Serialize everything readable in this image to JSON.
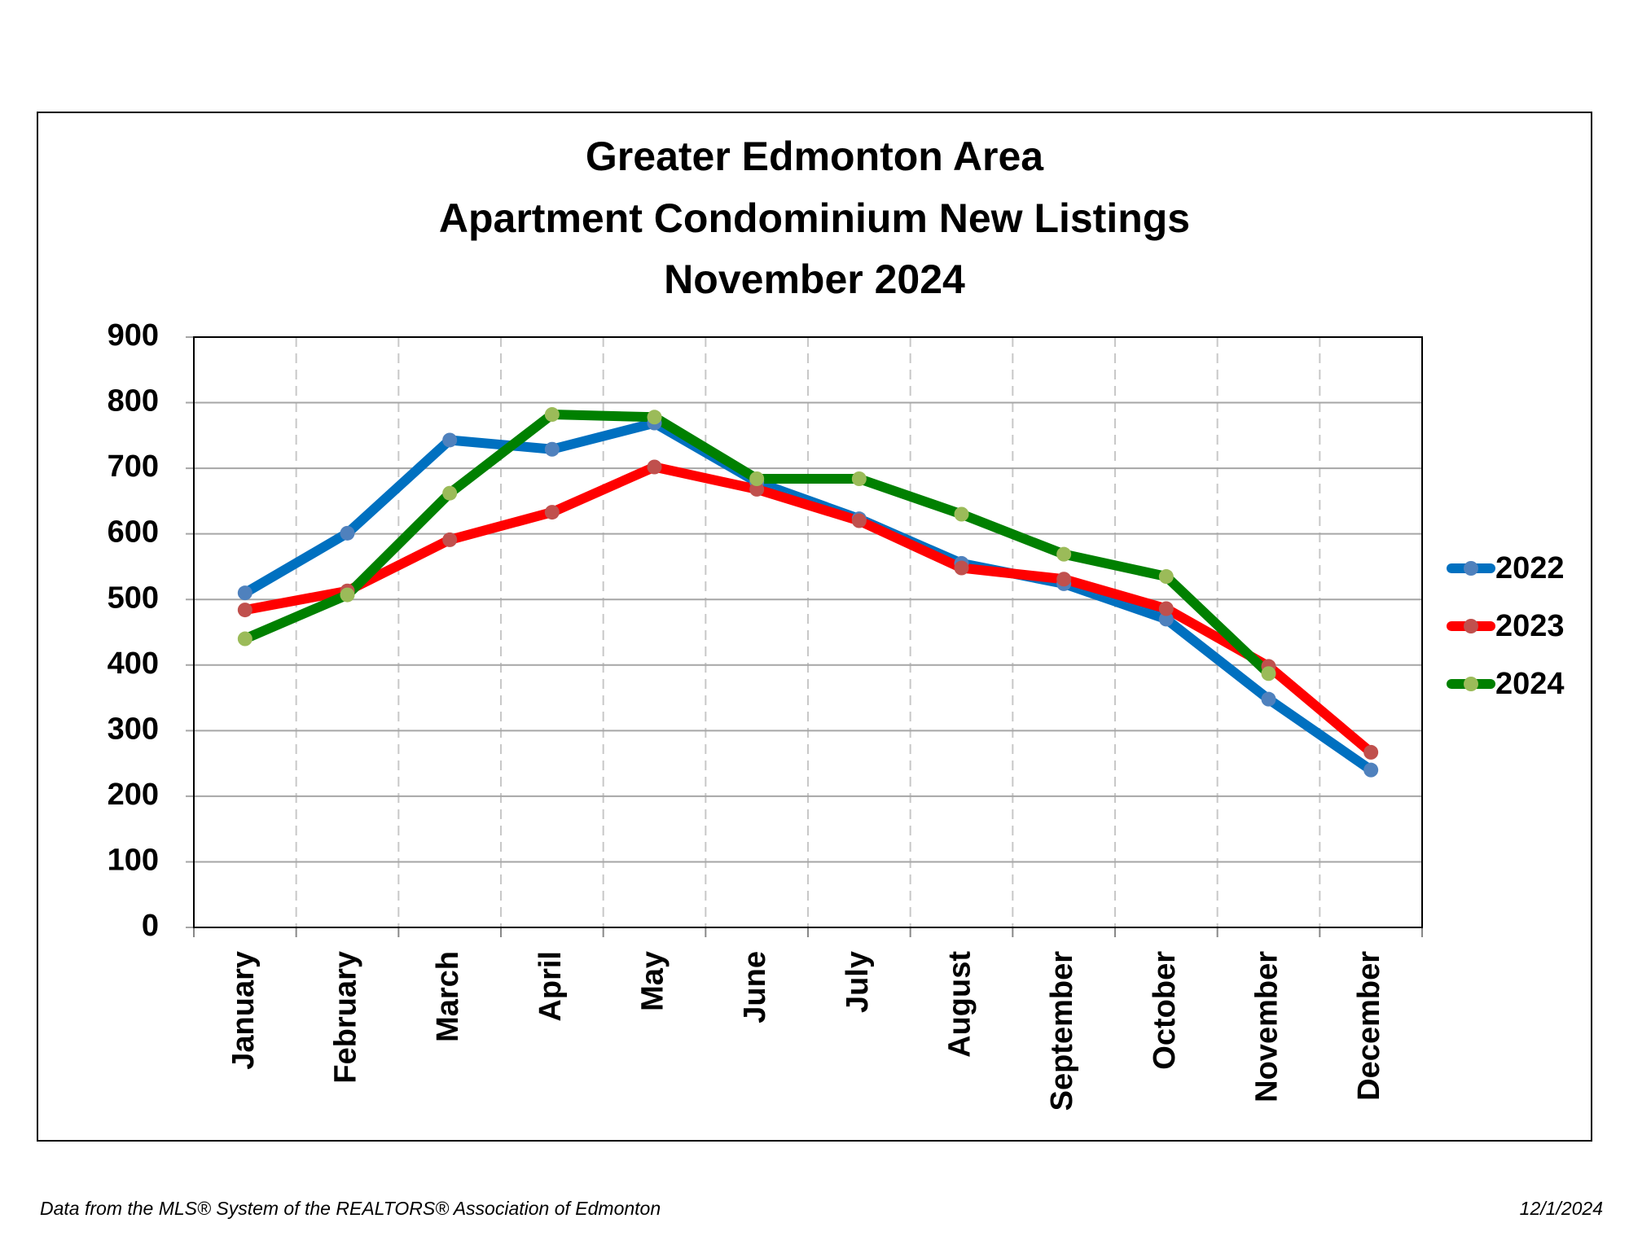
{
  "chart_data": {
    "type": "line",
    "title": [
      "Greater Edmonton Area",
      "Apartment Condominium New Listings",
      "November 2024"
    ],
    "categories": [
      "January",
      "February",
      "March",
      "April",
      "May",
      "June",
      "July",
      "August",
      "September",
      "October",
      "November",
      "December"
    ],
    "series": [
      {
        "name": "2022",
        "color": "#0070c0",
        "marker_color": "#4f81bd",
        "values": [
          510,
          601,
          743,
          729,
          769,
          679,
          623,
          555,
          524,
          470,
          348,
          240
        ]
      },
      {
        "name": "2023",
        "color": "#ff0000",
        "marker_color": "#c0504d",
        "values": [
          484,
          513,
          591,
          633,
          702,
          668,
          620,
          548,
          531,
          486,
          398,
          267
        ]
      },
      {
        "name": "2024",
        "color": "#008000",
        "marker_color": "#9bbb59",
        "values": [
          440,
          507,
          662,
          782,
          778,
          684,
          684,
          630,
          569,
          535,
          387,
          null
        ]
      }
    ],
    "ylim": [
      0,
      900
    ],
    "yticks": [
      0,
      100,
      200,
      300,
      400,
      500,
      600,
      700,
      800,
      900
    ],
    "grid": true,
    "legend": "right"
  },
  "footer": {
    "source": "Data from the MLS® System of the REALTORS® Association of Edmonton",
    "date": "12/1/2024"
  }
}
